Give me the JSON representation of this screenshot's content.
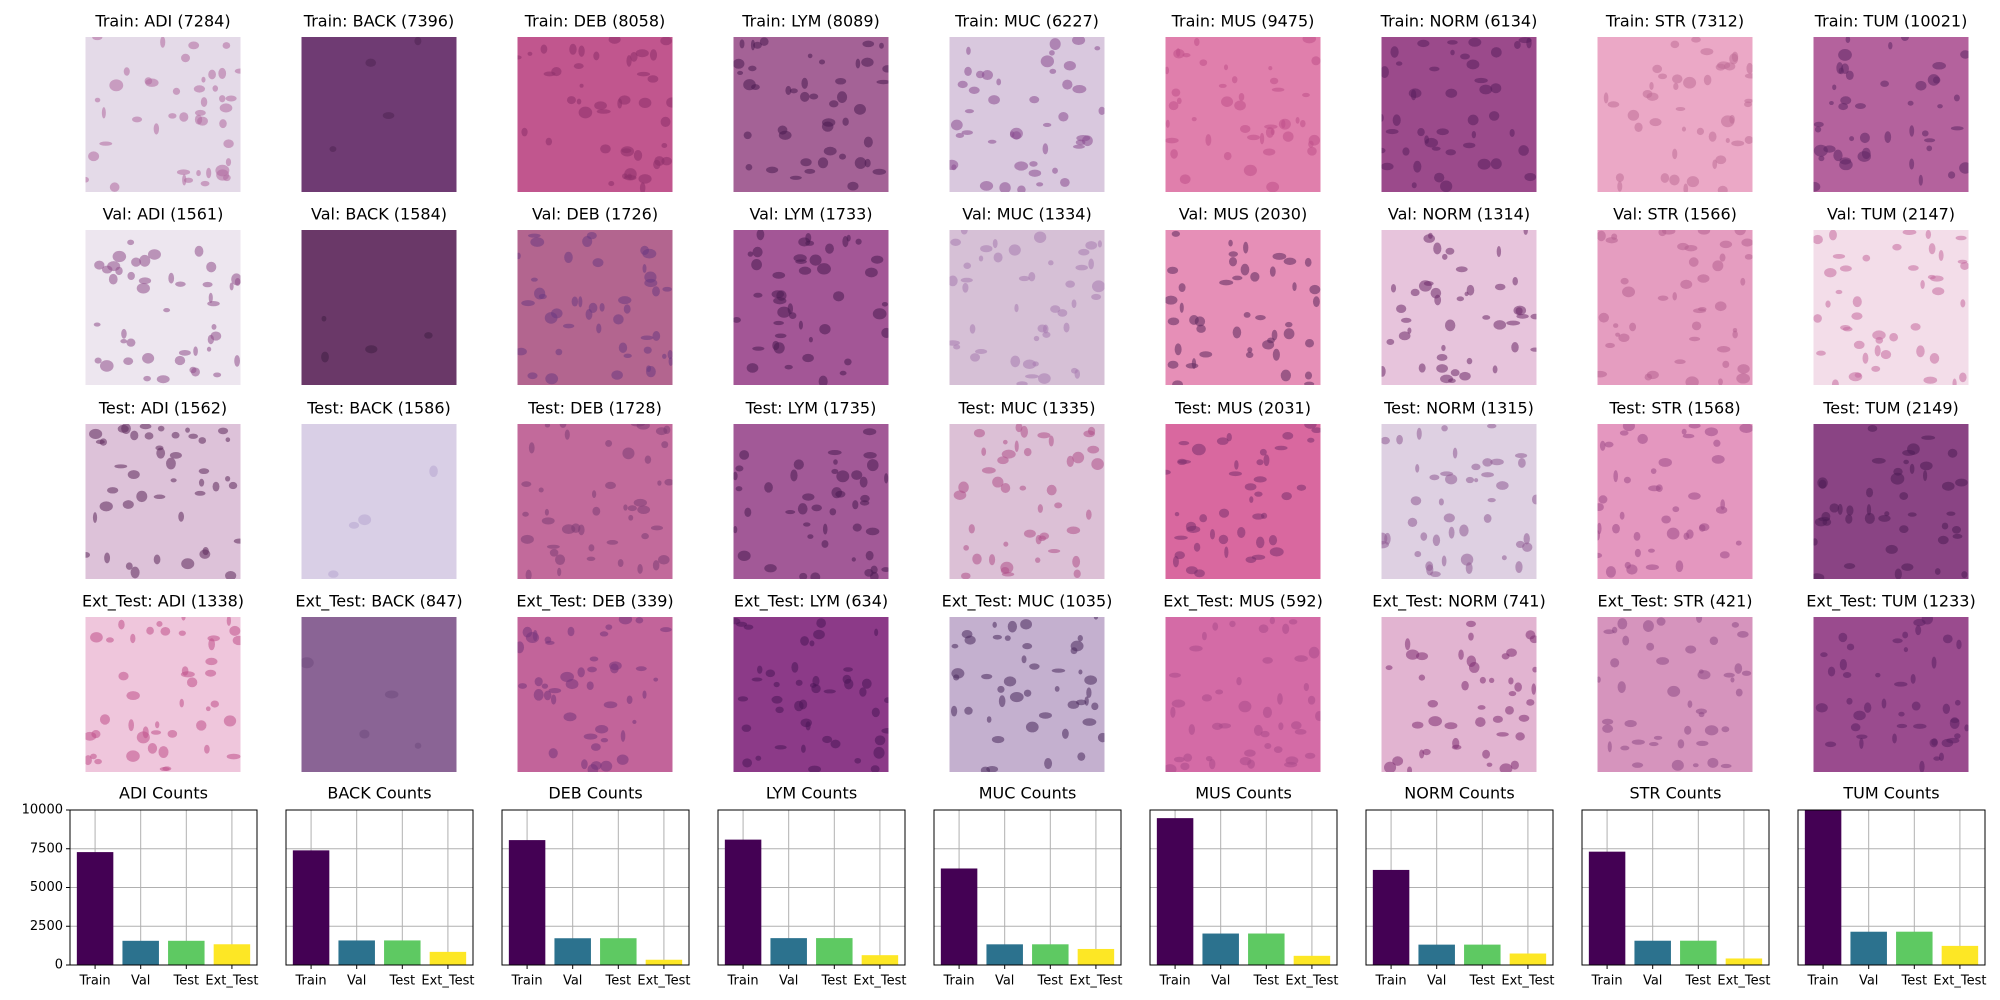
{
  "image_grid": {
    "rows": [
      {
        "tiles": [
          "Train: ADI (7284)",
          "Train: BACK (7396)",
          "Train: DEB (8058)",
          "Train: LYM (8089)",
          "Train: MUC (6227)",
          "Train: MUS (9475)",
          "Train: NORM (6134)",
          "Train: STR (7312)",
          "Train: TUM (10021)"
        ]
      },
      {
        "tiles": [
          "Val: ADI (1561)",
          "Val: BACK (1584)",
          "Val: DEB (1726)",
          "Val: LYM (1733)",
          "Val: MUC (1334)",
          "Val: MUS (2030)",
          "Val: NORM (1314)",
          "Val: STR (1566)",
          "Val: TUM (2147)"
        ]
      },
      {
        "tiles": [
          "Test: ADI (1562)",
          "Test: BACK (1586)",
          "Test: DEB (1728)",
          "Test: LYM (1735)",
          "Test: MUC (1335)",
          "Test: MUS (2031)",
          "Test: NORM (1315)",
          "Test: STR (1568)",
          "Test: TUM (2149)"
        ]
      },
      {
        "tiles": [
          "Ext_Test: ADI (1338)",
          "Ext_Test: BACK (847)",
          "Ext_Test: DEB (339)",
          "Ext_Test: LYM (634)",
          "Ext_Test: MUC (1035)",
          "Ext_Test: MUS (592)",
          "Ext_Test: NORM (741)",
          "Ext_Test: STR (421)",
          "Ext_Test: TUM (1233)"
        ]
      }
    ]
  },
  "chart_data": [
    {
      "type": "bar",
      "title": "ADI Counts",
      "categories": [
        "Train",
        "Val",
        "Test",
        "Ext_Test"
      ],
      "values": [
        7284,
        1561,
        1562,
        1338
      ],
      "colors": [
        "#440154",
        "#2c728e",
        "#5ec962",
        "#fde725"
      ],
      "ylim": [
        0,
        10000
      ],
      "yticks": [
        0,
        2500,
        5000,
        7500,
        10000
      ],
      "grid": true
    },
    {
      "type": "bar",
      "title": "BACK Counts",
      "categories": [
        "Train",
        "Val",
        "Test",
        "Ext_Test"
      ],
      "values": [
        7396,
        1584,
        1586,
        847
      ],
      "colors": [
        "#440154",
        "#2c728e",
        "#5ec962",
        "#fde725"
      ],
      "grid": true
    },
    {
      "type": "bar",
      "title": "DEB Counts",
      "categories": [
        "Train",
        "Val",
        "Test",
        "Ext_Test"
      ],
      "values": [
        8058,
        1726,
        1728,
        339
      ],
      "colors": [
        "#440154",
        "#2c728e",
        "#5ec962",
        "#fde725"
      ],
      "grid": true
    },
    {
      "type": "bar",
      "title": "LYM Counts",
      "categories": [
        "Train",
        "Val",
        "Test",
        "Ext_Test"
      ],
      "values": [
        8089,
        1733,
        1735,
        634
      ],
      "colors": [
        "#440154",
        "#2c728e",
        "#5ec962",
        "#fde725"
      ],
      "grid": true
    },
    {
      "type": "bar",
      "title": "MUC Counts",
      "categories": [
        "Train",
        "Val",
        "Test",
        "Ext_Test"
      ],
      "values": [
        6227,
        1334,
        1335,
        1035
      ],
      "colors": [
        "#440154",
        "#2c728e",
        "#5ec962",
        "#fde725"
      ],
      "grid": true
    },
    {
      "type": "bar",
      "title": "MUS Counts",
      "categories": [
        "Train",
        "Val",
        "Test",
        "Ext_Test"
      ],
      "values": [
        9475,
        2030,
        2031,
        592
      ],
      "colors": [
        "#440154",
        "#2c728e",
        "#5ec962",
        "#fde725"
      ],
      "grid": true
    },
    {
      "type": "bar",
      "title": "NORM Counts",
      "categories": [
        "Train",
        "Val",
        "Test",
        "Ext_Test"
      ],
      "values": [
        6134,
        1314,
        1315,
        741
      ],
      "colors": [
        "#440154",
        "#2c728e",
        "#5ec962",
        "#fde725"
      ],
      "grid": true
    },
    {
      "type": "bar",
      "title": "STR Counts",
      "categories": [
        "Train",
        "Val",
        "Test",
        "Ext_Test"
      ],
      "values": [
        7312,
        1566,
        1568,
        421
      ],
      "colors": [
        "#440154",
        "#2c728e",
        "#5ec962",
        "#fde725"
      ],
      "grid": true
    },
    {
      "type": "bar",
      "title": "TUM Counts",
      "categories": [
        "Train",
        "Val",
        "Test",
        "Ext_Test"
      ],
      "values": [
        10021,
        2147,
        2149,
        1233
      ],
      "colors": [
        "#440154",
        "#2c728e",
        "#5ec962",
        "#fde725"
      ],
      "grid": true
    }
  ]
}
